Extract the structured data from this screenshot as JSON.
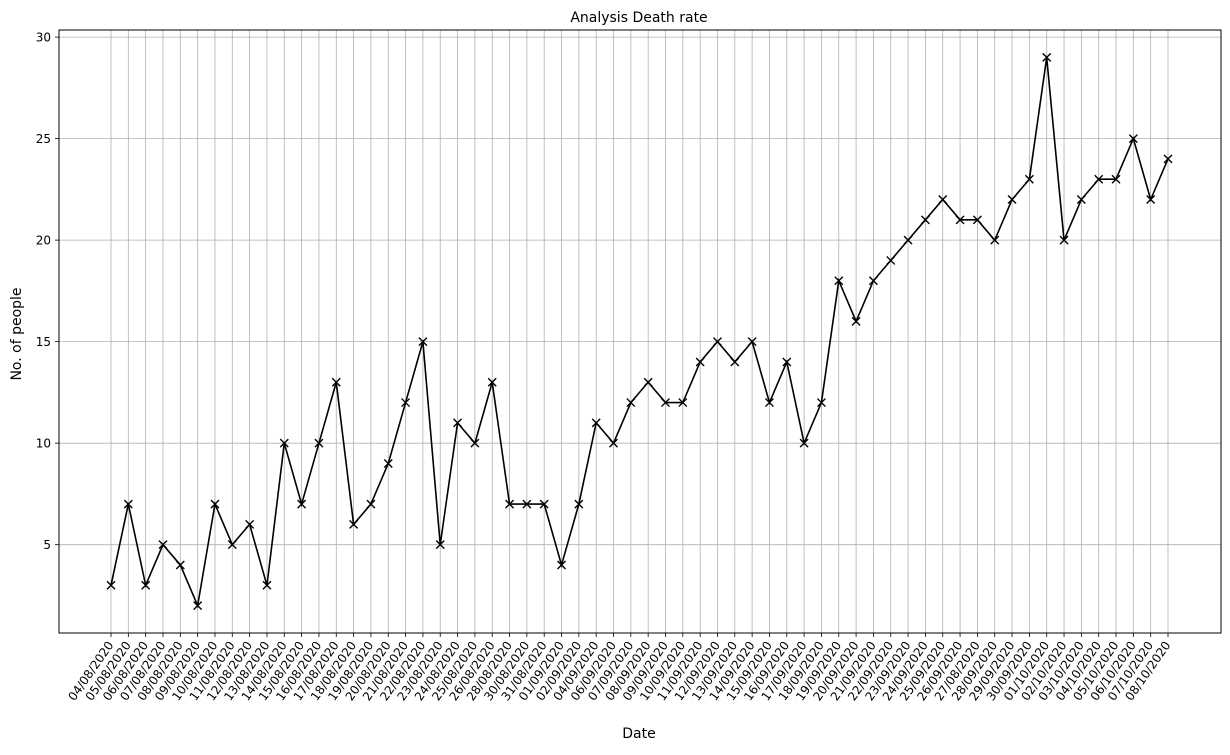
{
  "chart_data": {
    "type": "line",
    "title": "Analysis Death rate",
    "xlabel": "Date",
    "ylabel": "No. of people",
    "ylim": [
      0.65,
      30.35
    ],
    "yticks": [
      5,
      10,
      15,
      20,
      25,
      30
    ],
    "grid": true,
    "marker": "x",
    "line_color": "#000000",
    "grid_color": "#b0b0b0",
    "categories": [
      "04/08/2020",
      "05/08/2020",
      "06/08/2020",
      "07/08/2020",
      "08/08/2020",
      "09/08/2020",
      "10/08/2020",
      "11/08/2020",
      "12/08/2020",
      "13/08/2020",
      "14/08/2020",
      "15/08/2020",
      "16/08/2020",
      "17/08/2020",
      "18/08/2020",
      "19/08/2020",
      "20/08/2020",
      "21/08/2020",
      "22/08/2020",
      "23/08/2020",
      "24/08/2020",
      "25/08/2020",
      "26/08/2020",
      "28/08/2020",
      "30/08/2020",
      "31/08/2020",
      "01/09/2020",
      "02/09/2020",
      "04/09/2020",
      "06/09/2020",
      "07/09/2020",
      "08/09/2020",
      "09/09/2020",
      "10/09/2020",
      "11/09/2020",
      "12/09/2020",
      "13/09/2020",
      "14/09/2020",
      "15/09/2020",
      "16/09/2020",
      "17/09/2020",
      "18/09/2020",
      "19/09/2020",
      "20/09/2020",
      "21/09/2020",
      "22/09/2020",
      "23/09/2020",
      "24/09/2020",
      "25/09/2020",
      "26/09/2020",
      "27/08/2020",
      "28/09/2020",
      "29/09/2020",
      "30/09/2020",
      "01/10/2020",
      "02/10/2020",
      "03/10/2020",
      "04/10/2020",
      "05/10/2020",
      "06/10/2020",
      "07/10/2020",
      "08/10/2020"
    ],
    "values": [
      3,
      7,
      3,
      5,
      4,
      2,
      7,
      5,
      6,
      3,
      10,
      7,
      10,
      13,
      6,
      7,
      9,
      12,
      15,
      5,
      11,
      10,
      13,
      7,
      7,
      7,
      4,
      7,
      11,
      10,
      12,
      13,
      12,
      12,
      14,
      15,
      14,
      15,
      12,
      14,
      10,
      12,
      18,
      16,
      18,
      19,
      20,
      21,
      22,
      21,
      21,
      20,
      22,
      23,
      29,
      20,
      22,
      23,
      23,
      25,
      22,
      24
    ]
  }
}
